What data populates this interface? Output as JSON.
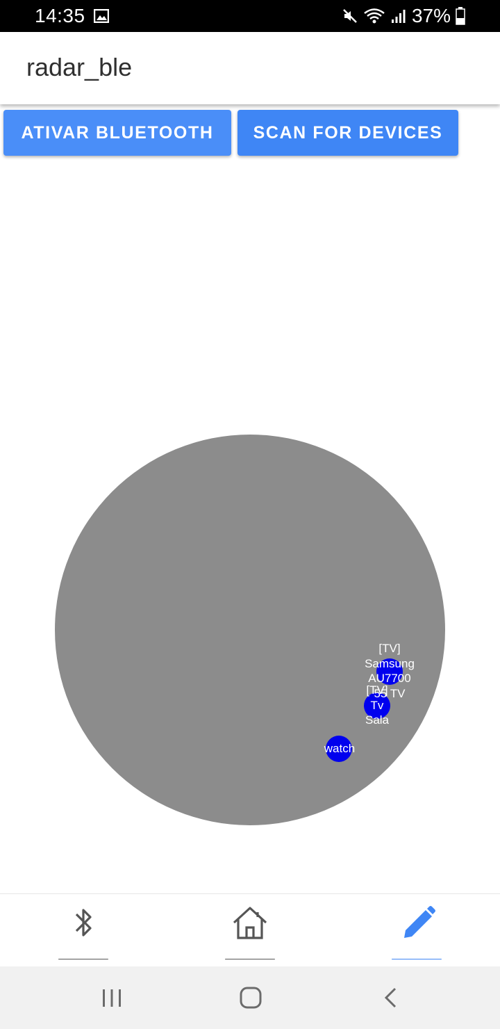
{
  "status_bar": {
    "time": "14:35",
    "battery": "37%",
    "icons": [
      "gallery-icon",
      "mute-icon",
      "wifi-icon",
      "signal-icon",
      "battery-icon"
    ]
  },
  "app_bar": {
    "title": "radar_ble"
  },
  "buttons": {
    "enable_bluetooth": "ATIVAR BLUETOOTH",
    "scan": "SCAN FOR DEVICES"
  },
  "radar": {
    "color": "#8c8c8c",
    "dot_color": "#0000ee",
    "devices": [
      {
        "name": "[TV]\nSamsung\nAU7700\n55 TV"
      },
      {
        "name": "[TV]\nTv\nSala"
      },
      {
        "name": "watch"
      }
    ]
  },
  "bottom_nav": {
    "items": [
      {
        "label": "________",
        "icon": "bluetooth-icon",
        "active": false
      },
      {
        "label": "________",
        "icon": "home-icon",
        "active": false
      },
      {
        "label": "________",
        "icon": "pencil-icon",
        "active": true
      }
    ],
    "active_color": "#3f86f5"
  },
  "system_nav": {
    "icons": [
      "recents-icon",
      "home-circle-icon",
      "back-icon"
    ]
  }
}
